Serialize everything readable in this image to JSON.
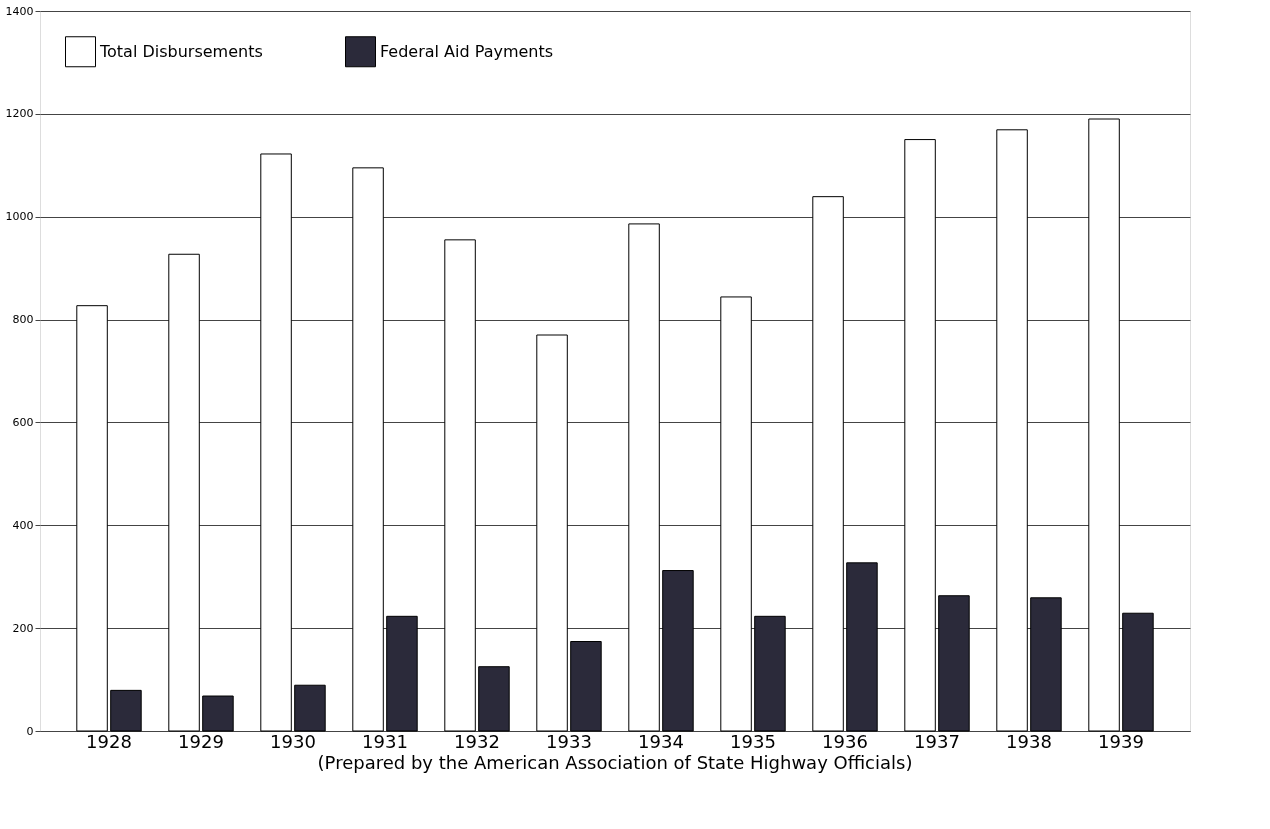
{
  "chart_data": {
    "type": "bar",
    "categories": [
      "1928",
      "1929",
      "1930",
      "1931",
      "1932",
      "1933",
      "1934",
      "1935",
      "1936",
      "1937",
      "1938",
      "1939"
    ],
    "series": [
      {
        "name": "Total Disbursements",
        "color": "#ffffff",
        "values": [
          827,
          927,
          1122,
          1095,
          955,
          770,
          986,
          844,
          1039,
          1150,
          1169,
          1190
        ]
      },
      {
        "name": "Federal Aid Payments",
        "color": "#2b2a3a",
        "values": [
          79,
          68,
          89,
          223,
          125,
          174,
          312,
          223,
          327,
          263,
          259,
          229
        ]
      }
    ],
    "ylim": [
      0,
      1400
    ],
    "yticks": [
      0,
      200,
      400,
      600,
      800,
      1000,
      1200,
      1400
    ],
    "grid": "y",
    "legend": "top left",
    "annotations": [
      "(Prepared by the American Association of State Highway Officials)"
    ]
  }
}
